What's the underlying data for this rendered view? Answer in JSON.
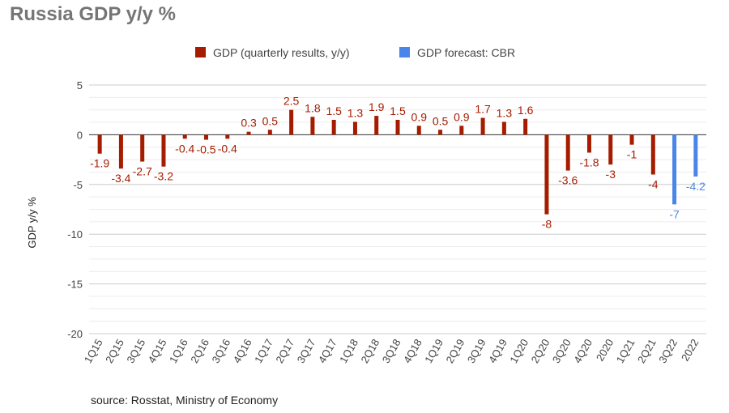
{
  "chart_data": {
    "type": "bar",
    "title": "Russia GDP y/y %",
    "ylabel": "GDP y/y %",
    "xlabel": "",
    "ylim": [
      -20,
      5
    ],
    "yticks": [
      5,
      0,
      -5,
      -10,
      -15,
      -20
    ],
    "grid": true,
    "legend_position": "top",
    "categories": [
      "1Q15",
      "2Q15",
      "3Q15",
      "4Q15",
      "1Q16",
      "2Q16",
      "3Q16",
      "4Q16",
      "1Q17",
      "2Q17",
      "3Q17",
      "4Q17",
      "1Q18",
      "2Q18",
      "3Q18",
      "4Q18",
      "1Q19",
      "2Q19",
      "3Q19",
      "4Q19",
      "1Q20",
      "2Q20",
      "3Q20",
      "4Q20",
      "2020",
      "1Q21",
      "2Q21",
      "3Q22",
      "2022"
    ],
    "series": [
      {
        "name": "GDP (quarterly results, y/y)",
        "color": "#a61c00",
        "values": [
          -1.9,
          -3.4,
          -2.7,
          -3.2,
          -0.4,
          -0.5,
          -0.4,
          0.3,
          0.5,
          2.5,
          1.8,
          1.5,
          1.3,
          1.9,
          1.5,
          0.9,
          0.5,
          0.9,
          1.7,
          1.3,
          1.6,
          -8,
          -3.6,
          -1.8,
          -3,
          -1,
          -4,
          null,
          null
        ]
      },
      {
        "name": "GDP forecast: CBR",
        "color": "#4a86e8",
        "values": [
          null,
          null,
          null,
          null,
          null,
          null,
          null,
          null,
          null,
          null,
          null,
          null,
          null,
          null,
          null,
          null,
          null,
          null,
          null,
          null,
          null,
          null,
          null,
          null,
          null,
          null,
          null,
          -7,
          -4.2
        ]
      }
    ]
  },
  "source": "source: Rosstat, Ministry of Economy"
}
